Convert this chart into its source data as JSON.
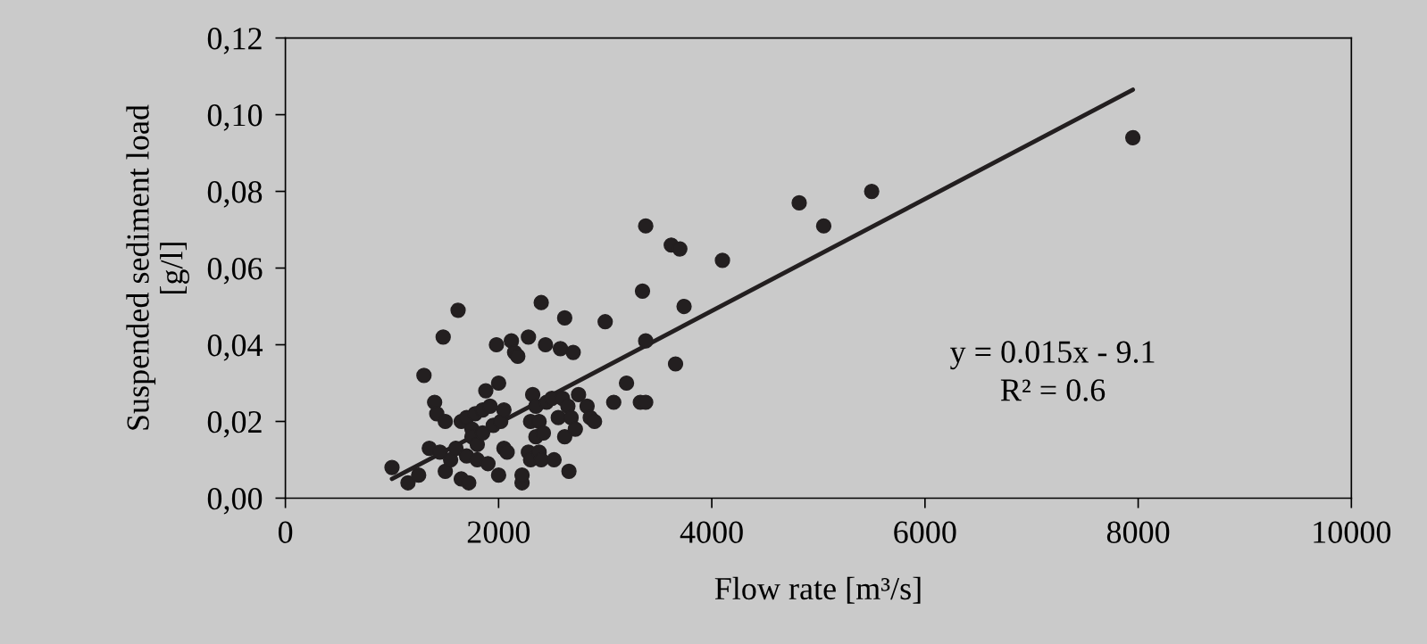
{
  "chart_data": {
    "type": "scatter",
    "xlabel": "Flow rate [m³/s]",
    "ylabel": "Suspended sediment load\n[g/l]",
    "annotations": [
      "y = 0.015x - 9.1\nR² = 0.6"
    ],
    "xlim": [
      0,
      10000
    ],
    "xticks": [
      0,
      2000,
      4000,
      6000,
      8000,
      10000
    ],
    "ylim": [
      0,
      0.12
    ],
    "yticks": [
      {
        "value": 0,
        "label": "0,00"
      },
      {
        "value": 0.02,
        "label": "0,02"
      },
      {
        "value": 0.04,
        "label": "0,04"
      },
      {
        "value": 0.06,
        "label": "0,06"
      },
      {
        "value": 0.08,
        "label": "0,08"
      },
      {
        "value": 0.1,
        "label": "0,10"
      },
      {
        "value": 0.12,
        "label": "0,12"
      }
    ],
    "grid": false,
    "legend": false,
    "series": [
      {
        "marker": "circle",
        "color": "#231f20",
        "x": [
          1000,
          1150,
          1250,
          1300,
          1350,
          1400,
          1420,
          1450,
          1480,
          1500,
          1500,
          1550,
          1600,
          1620,
          1650,
          1650,
          1700,
          1700,
          1720,
          1750,
          1750,
          1780,
          1800,
          1800,
          1850,
          1850,
          1880,
          1900,
          1920,
          1950,
          1980,
          2000,
          2000,
          2020,
          2050,
          2050,
          2080,
          2120,
          2150,
          2180,
          2220,
          2220,
          2280,
          2280,
          2300,
          2300,
          2320,
          2350,
          2350,
          2380,
          2380,
          2400,
          2400,
          2420,
          2440,
          2450,
          2500,
          2520,
          2560,
          2580,
          2600,
          2620,
          2620,
          2650,
          2660,
          2680,
          2700,
          2720,
          2750,
          2830,
          2860,
          2900,
          3000,
          3080,
          3200,
          3330,
          3380,
          3350,
          3380,
          3380,
          3620,
          3660,
          3700,
          3740,
          4100,
          4820,
          5050,
          5500,
          7950
        ],
        "values": [
          0.008,
          0.004,
          0.006,
          0.032,
          0.013,
          0.025,
          0.022,
          0.012,
          0.042,
          0.02,
          0.007,
          0.01,
          0.013,
          0.049,
          0.02,
          0.005,
          0.021,
          0.011,
          0.004,
          0.018,
          0.016,
          0.022,
          0.014,
          0.01,
          0.023,
          0.017,
          0.028,
          0.009,
          0.024,
          0.019,
          0.04,
          0.006,
          0.03,
          0.02,
          0.023,
          0.013,
          0.012,
          0.041,
          0.038,
          0.037,
          0.004,
          0.006,
          0.042,
          0.012,
          0.01,
          0.02,
          0.027,
          0.024,
          0.016,
          0.02,
          0.012,
          0.051,
          0.01,
          0.017,
          0.04,
          0.025,
          0.026,
          0.01,
          0.021,
          0.039,
          0.026,
          0.047,
          0.016,
          0.024,
          0.007,
          0.021,
          0.038,
          0.018,
          0.027,
          0.024,
          0.021,
          0.02,
          0.046,
          0.025,
          0.03,
          0.025,
          0.025,
          0.054,
          0.041,
          0.071,
          0.066,
          0.035,
          0.065,
          0.05,
          0.062,
          0.077,
          0.071,
          0.08,
          0.094
        ]
      },
      {
        "type": "line",
        "marker": "none",
        "color": "#231f20",
        "x": [
          1000,
          7950
        ],
        "values": [
          0.005,
          0.1065
        ]
      }
    ]
  }
}
